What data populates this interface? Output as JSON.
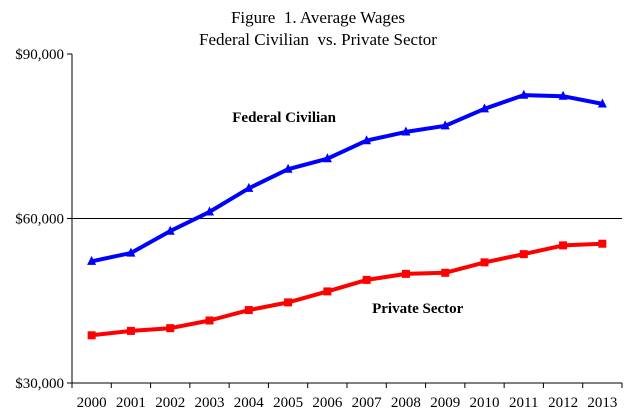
{
  "chart_data": {
    "type": "line",
    "title": "Figure  1. Average Wages",
    "subtitle": "Federal Civilian  vs. Private Sector",
    "xlabel": "",
    "ylabel": "",
    "categories": [
      "2000",
      "2001",
      "2002",
      "2003",
      "2004",
      "2005",
      "2006",
      "2007",
      "2008",
      "2009",
      "2010",
      "2011",
      "2012",
      "2013"
    ],
    "ylim": [
      30000,
      90000
    ],
    "yticks": [
      {
        "value": 30000,
        "label": "$30,000"
      },
      {
        "value": 60000,
        "label": "$60,000"
      },
      {
        "value": 90000,
        "label": "$90,000"
      }
    ],
    "grid": false,
    "reference_line": 60000,
    "series": [
      {
        "name": "Federal Civilian",
        "color": "#0000ff",
        "marker": "triangle",
        "values": [
          52200,
          53700,
          57700,
          61200,
          65500,
          69000,
          70900,
          74200,
          75800,
          76900,
          80000,
          82500,
          82300,
          80900
        ],
        "annotation": {
          "text": "Federal Civilian",
          "x_index": 4.9,
          "y_value": 77600
        }
      },
      {
        "name": "Private Sector",
        "color": "#ff0000",
        "marker": "square",
        "values": [
          38700,
          39500,
          40000,
          41400,
          43300,
          44700,
          46700,
          48800,
          49900,
          50100,
          52000,
          53500,
          55100,
          55400
        ],
        "annotation": {
          "text": "Private Sector",
          "x_index": 8.3,
          "y_value": 42800
        }
      }
    ]
  }
}
